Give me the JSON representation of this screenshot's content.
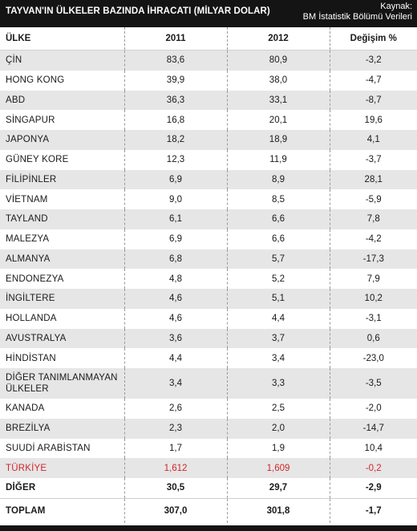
{
  "header": {
    "title": "TAYVAN'IN ÜLKELER BAZINDA İHRACATI (MİLYAR DOLAR)",
    "source_label": "Kaynak:",
    "source_name": "BM İstatistik Bölümü Verileri"
  },
  "chart_data": {
    "type": "table",
    "columns": [
      "ÜLKE",
      "2011",
      "2012",
      "Değişim  %"
    ],
    "rows": [
      [
        "ÇİN",
        "83,6",
        "80,9",
        "-3,2"
      ],
      [
        "HONG KONG",
        "39,9",
        "38,0",
        "-4,7"
      ],
      [
        "ABD",
        "36,3",
        "33,1",
        "-8,7"
      ],
      [
        "SİNGAPUR",
        "16,8",
        "20,1",
        "19,6"
      ],
      [
        "JAPONYA",
        "18,2",
        "18,9",
        "4,1"
      ],
      [
        "GÜNEY KORE",
        "12,3",
        "11,9",
        "-3,7"
      ],
      [
        "FİLİPİNLER",
        "6,9",
        "8,9",
        "28,1"
      ],
      [
        "VİETNAM",
        "9,0",
        "8,5",
        "-5,9"
      ],
      [
        "TAYLAND",
        "6,1",
        "6,6",
        "7,8"
      ],
      [
        "MALEZYA",
        "6,9",
        "6,6",
        "-4,2"
      ],
      [
        "ALMANYA",
        "6,8",
        "5,7",
        "-17,3"
      ],
      [
        "ENDONEZYA",
        "4,8",
        "5,2",
        "7,9"
      ],
      [
        "İNGİLTERE",
        "4,6",
        "5,1",
        "10,2"
      ],
      [
        "HOLLANDA",
        "4,6",
        "4,4",
        "-3,1"
      ],
      [
        "AVUSTRALYA",
        "3,6",
        "3,7",
        "0,6"
      ],
      [
        "HİNDİSTAN",
        "4,4",
        "3,4",
        "-23,0"
      ],
      [
        "DİĞER TANIMLANMAYAN ÜLKELER",
        "3,4",
        "3,3",
        "-3,5"
      ],
      [
        "KANADA",
        "2,6",
        "2,5",
        "-2,0"
      ],
      [
        "BREZİLYA",
        "2,3",
        "2,0",
        "-14,7"
      ],
      [
        "SUUDİ ARABİSTAN",
        "1,7",
        "1,9",
        "10,4"
      ],
      [
        "TÜRKİYE",
        "1,612",
        "1,609",
        "-0,2"
      ],
      [
        "DİĞER",
        "30,5",
        "29,7",
        "-2,9"
      ]
    ],
    "total": [
      "TOPLAM",
      "307,0",
      "301,8",
      "-1,7"
    ],
    "highlight_color": "#d0252a",
    "stripe_color": "#e6e6e6"
  }
}
